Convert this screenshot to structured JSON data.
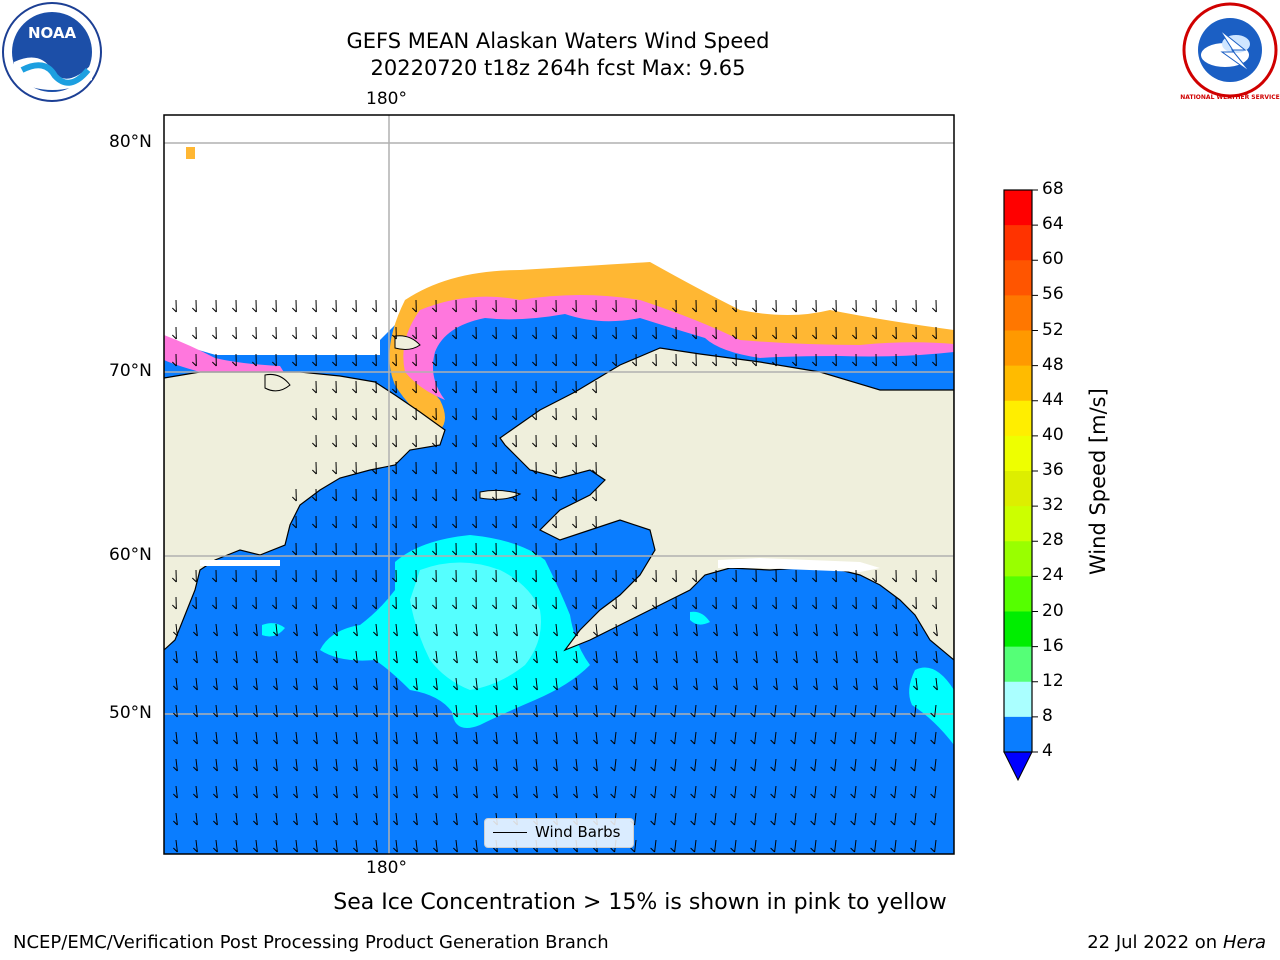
{
  "header": {
    "title_line1": "GEFS MEAN Alaskan Waters Wind Speed",
    "title_line2": "20220720 t18z 264h fcst    Max: 9.65"
  },
  "logos": {
    "left": {
      "text": "NOAA",
      "icon": "noaa-logo-icon"
    },
    "right": {
      "text": "NATIONAL WEATHER SERVICE",
      "icon": "nws-logo-icon"
    }
  },
  "map": {
    "lon_labels_top": [
      "180°"
    ],
    "lon_labels_bottom": [
      "180°"
    ],
    "lat_labels": [
      "80°N",
      "70°N",
      "60°N",
      "50°N"
    ],
    "legend": {
      "label": "Wind Barbs"
    },
    "colors": {
      "ocean": "#0a7dff",
      "land": "#efefdc",
      "coast": "#000000",
      "grid": "#b0b0b0",
      "cyan": "#00ffff",
      "aqua": "#55ffff",
      "pink": "#ff77dd",
      "magenta": "#ff22ff",
      "orange": "#ffb733"
    }
  },
  "colorbar": {
    "label": "Wind Speed [m/s]",
    "ticks": [
      "68",
      "64",
      "60",
      "56",
      "52",
      "48",
      "44",
      "40",
      "36",
      "32",
      "28",
      "24",
      "20",
      "16",
      "12",
      "8",
      "4"
    ],
    "colors": [
      "#ff0000",
      "#ff3300",
      "#ff5500",
      "#ff7700",
      "#ff9900",
      "#ffbb00",
      "#ffee00",
      "#eeff00",
      "#ddee00",
      "#ccff00",
      "#99ff00",
      "#55ff00",
      "#00ee00",
      "#55ff77",
      "#aaffff",
      "#55ffff",
      "#00ffff",
      "#0a7dff"
    ],
    "extend_color": "#0000ff"
  },
  "caption": "Sea Ice Concentration > 15% is shown in pink to yellow",
  "footer": {
    "left": "NCEP/EMC/Verification Post Processing Product Generation Branch",
    "right_prefix": "22 Jul 2022 on ",
    "right_machine": "Hera"
  }
}
